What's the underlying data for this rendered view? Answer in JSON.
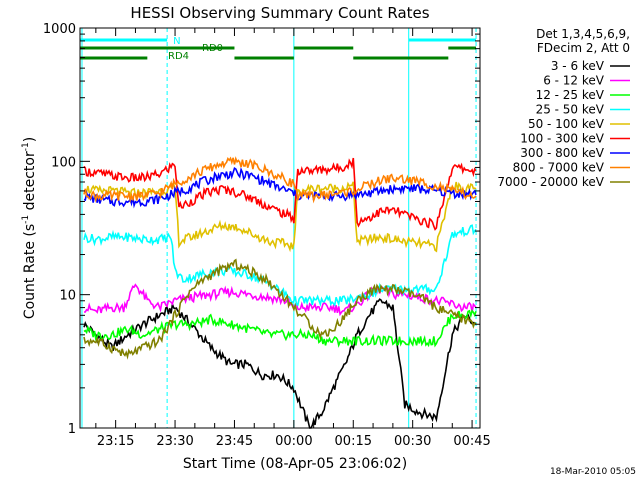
{
  "chart_data": {
    "type": "line",
    "title": "HESSI Observing Summary Count Rates",
    "xlabel": "Start Time (08-Apr-05 23:06:02)",
    "ylabel_main": "Count Rate (s",
    "ylabel_sup1": "-1",
    "ylabel_mid": " detector",
    "ylabel_sup2": "-1",
    "ylabel_end": ")",
    "yscale": "log",
    "ylim": [
      1,
      1000
    ],
    "xlim_min": [
      0,
      101
    ],
    "y_ticks": [
      "1",
      "10",
      "100",
      "1000"
    ],
    "x_ticks": [
      {
        "label": "23:15",
        "min": 9
      },
      {
        "label": "23:30",
        "min": 24
      },
      {
        "label": "23:45",
        "min": 39
      },
      {
        "label": "00:00",
        "min": 54
      },
      {
        "label": "00:15",
        "min": 69
      },
      {
        "label": "00:30",
        "min": 84
      },
      {
        "label": "00:45",
        "min": 99
      }
    ],
    "legend_header": [
      "Det 1,3,4,5,6,9,",
      "FDecim 2, Att 0"
    ],
    "series": [
      {
        "name": "3 - 6 keV",
        "color": "#000000",
        "points": [
          [
            1,
            6
          ],
          [
            4,
            5
          ],
          [
            8,
            4
          ],
          [
            12,
            5
          ],
          [
            16,
            6
          ],
          [
            20,
            7
          ],
          [
            24,
            8
          ],
          [
            28,
            6
          ],
          [
            33,
            4
          ],
          [
            38,
            3
          ],
          [
            42,
            3
          ],
          [
            46,
            2.5
          ],
          [
            50,
            2.5
          ],
          [
            54,
            2
          ],
          [
            58,
            1
          ],
          [
            61,
            1.3
          ],
          [
            64,
            2
          ],
          [
            67,
            3
          ],
          [
            70,
            5
          ],
          [
            73,
            7
          ],
          [
            76,
            9
          ],
          [
            79,
            8
          ],
          [
            82,
            1.5
          ],
          [
            86,
            1.3
          ],
          [
            90,
            1.2
          ],
          [
            94,
            5
          ],
          [
            97,
            7
          ],
          [
            100,
            6
          ]
        ]
      },
      {
        "name": "6 - 12 keV",
        "color": "#ff00ff",
        "points": [
          [
            1,
            8
          ],
          [
            4,
            7.5
          ],
          [
            8,
            8
          ],
          [
            11,
            8
          ],
          [
            14,
            12
          ],
          [
            17,
            9
          ],
          [
            20,
            8
          ],
          [
            24,
            9
          ],
          [
            28,
            9.5
          ],
          [
            33,
            10
          ],
          [
            38,
            10.5
          ],
          [
            43,
            10
          ],
          [
            48,
            9.5
          ],
          [
            52,
            9
          ],
          [
            54,
            8
          ],
          [
            57,
            8
          ],
          [
            61,
            8
          ],
          [
            64,
            8
          ],
          [
            67,
            7.5
          ],
          [
            70,
            8.5
          ],
          [
            73,
            10
          ],
          [
            76,
            11
          ],
          [
            79,
            10
          ],
          [
            82,
            10
          ],
          [
            86,
            9.5
          ],
          [
            90,
            9
          ],
          [
            94,
            8.5
          ],
          [
            97,
            8
          ],
          [
            100,
            8
          ]
        ]
      },
      {
        "name": "12 - 25 keV",
        "color": "#00ff00",
        "points": [
          [
            1,
            5.5
          ],
          [
            4,
            5
          ],
          [
            8,
            5
          ],
          [
            12,
            5.5
          ],
          [
            16,
            5
          ],
          [
            20,
            5.5
          ],
          [
            24,
            6
          ],
          [
            28,
            6
          ],
          [
            33,
            6.5
          ],
          [
            38,
            6
          ],
          [
            43,
            5.5
          ],
          [
            48,
            5
          ],
          [
            52,
            5
          ],
          [
            54,
            5
          ],
          [
            58,
            5
          ],
          [
            62,
            4.5
          ],
          [
            66,
            4.5
          ],
          [
            70,
            4.5
          ],
          [
            74,
            4.5
          ],
          [
            78,
            4.5
          ],
          [
            82,
            4.5
          ],
          [
            86,
            4.5
          ],
          [
            90,
            4.5
          ],
          [
            94,
            7
          ],
          [
            97,
            7
          ],
          [
            100,
            7.5
          ]
        ]
      },
      {
        "name": "25 - 50 keV",
        "color": "#00ffff",
        "points": [
          [
            1,
            27
          ],
          [
            4,
            26
          ],
          [
            8,
            27
          ],
          [
            12,
            27
          ],
          [
            16,
            26
          ],
          [
            20,
            26
          ],
          [
            23,
            27
          ],
          [
            24,
            15
          ],
          [
            26,
            13
          ],
          [
            30,
            14
          ],
          [
            34,
            15
          ],
          [
            38,
            15
          ],
          [
            43,
            14
          ],
          [
            48,
            12
          ],
          [
            52,
            10
          ],
          [
            54,
            9
          ],
          [
            57,
            9
          ],
          [
            61,
            9
          ],
          [
            64,
            9
          ],
          [
            67,
            9
          ],
          [
            70,
            9.5
          ],
          [
            73,
            10
          ],
          [
            76,
            11
          ],
          [
            79,
            11
          ],
          [
            82,
            11
          ],
          [
            86,
            11
          ],
          [
            90,
            11
          ],
          [
            94,
            28
          ],
          [
            97,
            30
          ],
          [
            100,
            31
          ]
        ]
      },
      {
        "name": "50 - 100 keV",
        "color": "#e0c000",
        "points": [
          [
            1,
            63
          ],
          [
            4,
            60
          ],
          [
            8,
            60
          ],
          [
            12,
            58
          ],
          [
            16,
            58
          ],
          [
            20,
            60
          ],
          [
            24,
            63
          ],
          [
            25,
            25
          ],
          [
            28,
            27
          ],
          [
            32,
            30
          ],
          [
            36,
            33
          ],
          [
            40,
            32
          ],
          [
            44,
            28
          ],
          [
            48,
            25
          ],
          [
            52,
            24
          ],
          [
            54,
            23
          ],
          [
            55,
            60
          ],
          [
            58,
            62
          ],
          [
            62,
            63
          ],
          [
            66,
            63
          ],
          [
            69,
            65
          ],
          [
            70,
            25
          ],
          [
            73,
            26
          ],
          [
            76,
            27
          ],
          [
            79,
            26
          ],
          [
            82,
            25
          ],
          [
            86,
            24
          ],
          [
            90,
            23
          ],
          [
            94,
            66
          ],
          [
            97,
            63
          ],
          [
            100,
            62
          ]
        ]
      },
      {
        "name": "100 - 300 keV",
        "color": "#ff0000",
        "points": [
          [
            1,
            85
          ],
          [
            4,
            82
          ],
          [
            8,
            78
          ],
          [
            12,
            75
          ],
          [
            16,
            75
          ],
          [
            20,
            80
          ],
          [
            24,
            95
          ],
          [
            25,
            45
          ],
          [
            28,
            50
          ],
          [
            32,
            58
          ],
          [
            36,
            62
          ],
          [
            40,
            58
          ],
          [
            44,
            52
          ],
          [
            48,
            45
          ],
          [
            52,
            40
          ],
          [
            54,
            37
          ],
          [
            55,
            85
          ],
          [
            58,
            85
          ],
          [
            62,
            87
          ],
          [
            66,
            90
          ],
          [
            69,
            100
          ],
          [
            70,
            35
          ],
          [
            73,
            38
          ],
          [
            76,
            42
          ],
          [
            79,
            43
          ],
          [
            82,
            40
          ],
          [
            86,
            36
          ],
          [
            90,
            33
          ],
          [
            94,
            90
          ],
          [
            97,
            88
          ],
          [
            100,
            85
          ]
        ]
      },
      {
        "name": "300 - 800 keV",
        "color": "#0000ff",
        "points": [
          [
            1,
            55
          ],
          [
            4,
            52
          ],
          [
            8,
            50
          ],
          [
            12,
            50
          ],
          [
            16,
            50
          ],
          [
            20,
            52
          ],
          [
            24,
            58
          ],
          [
            27,
            62
          ],
          [
            31,
            70
          ],
          [
            35,
            78
          ],
          [
            39,
            82
          ],
          [
            43,
            78
          ],
          [
            47,
            70
          ],
          [
            51,
            62
          ],
          [
            54,
            58
          ],
          [
            55,
            55
          ],
          [
            58,
            55
          ],
          [
            62,
            55
          ],
          [
            66,
            55
          ],
          [
            69,
            56
          ],
          [
            72,
            57
          ],
          [
            76,
            60
          ],
          [
            79,
            62
          ],
          [
            82,
            63
          ],
          [
            86,
            62
          ],
          [
            90,
            60
          ],
          [
            94,
            58
          ],
          [
            97,
            57
          ],
          [
            100,
            56
          ]
        ]
      },
      {
        "name": "800 - 7000 keV",
        "color": "#ff8000",
        "points": [
          [
            1,
            58
          ],
          [
            4,
            55
          ],
          [
            8,
            55
          ],
          [
            12,
            55
          ],
          [
            16,
            55
          ],
          [
            20,
            58
          ],
          [
            24,
            68
          ],
          [
            27,
            75
          ],
          [
            31,
            85
          ],
          [
            35,
            95
          ],
          [
            39,
            100
          ],
          [
            43,
            95
          ],
          [
            47,
            85
          ],
          [
            51,
            75
          ],
          [
            54,
            68
          ],
          [
            55,
            55
          ],
          [
            58,
            55
          ],
          [
            62,
            56
          ],
          [
            66,
            58
          ],
          [
            69,
            60
          ],
          [
            72,
            65
          ],
          [
            76,
            72
          ],
          [
            79,
            75
          ],
          [
            82,
            73
          ],
          [
            86,
            70
          ],
          [
            90,
            65
          ],
          [
            94,
            60
          ],
          [
            97,
            57
          ],
          [
            100,
            55
          ]
        ]
      },
      {
        "name": "7000 - 20000 keV",
        "color": "#808000",
        "points": [
          [
            1,
            4.5
          ],
          [
            4,
            4.5
          ],
          [
            8,
            4
          ],
          [
            12,
            3.5
          ],
          [
            16,
            4
          ],
          [
            20,
            4.5
          ],
          [
            24,
            7
          ],
          [
            27,
            10
          ],
          [
            31,
            13
          ],
          [
            35,
            15
          ],
          [
            39,
            17
          ],
          [
            43,
            15
          ],
          [
            47,
            13
          ],
          [
            51,
            10
          ],
          [
            54,
            8
          ],
          [
            57,
            6.5
          ],
          [
            61,
            5
          ],
          [
            64,
            5.5
          ],
          [
            67,
            7
          ],
          [
            70,
            9
          ],
          [
            73,
            10.5
          ],
          [
            76,
            11
          ],
          [
            79,
            11
          ],
          [
            82,
            10.5
          ],
          [
            86,
            9.5
          ],
          [
            90,
            8
          ],
          [
            94,
            7
          ],
          [
            97,
            6.5
          ],
          [
            100,
            6
          ]
        ]
      }
    ],
    "flags": [
      {
        "label": "N",
        "color": "#00ffff",
        "row": 0,
        "segments": [
          [
            0,
            22
          ],
          [
            83,
            100
          ]
        ]
      },
      {
        "label": "RD0",
        "color": "#008000",
        "row": 1,
        "segments": [
          [
            0,
            39
          ],
          [
            54,
            69
          ],
          [
            93,
            100
          ]
        ]
      },
      {
        "label": "RD4",
        "color": "#008000",
        "row": 2,
        "segments": [
          [
            0,
            17
          ],
          [
            39,
            54
          ],
          [
            69,
            93
          ]
        ]
      }
    ],
    "event_lines": [
      {
        "min": 0.5,
        "style": "solid"
      },
      {
        "min": 22,
        "style": "dashed"
      },
      {
        "min": 54,
        "style": "solid"
      },
      {
        "min": 83,
        "style": "solid"
      },
      {
        "min": 100,
        "style": "dashed"
      }
    ]
  },
  "footer": {
    "timestamp": "18-Mar-2010 05:05"
  }
}
